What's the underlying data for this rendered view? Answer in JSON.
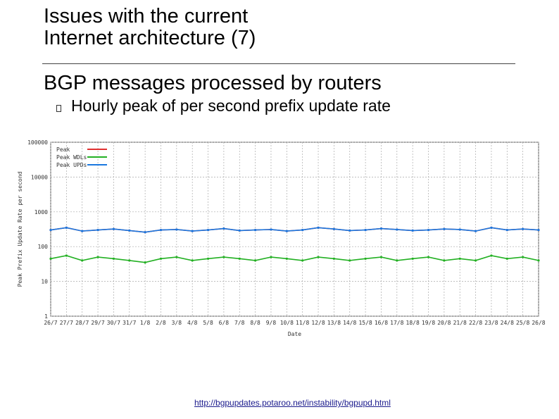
{
  "slide": {
    "title_line1": "Issues with the current",
    "title_line2": "Internet architecture (7)",
    "heading": "BGP messages processed by routers",
    "bullet": "Hourly peak of per second prefix update rate",
    "source_url": "http://bgpupdates.potaroo.net/instability/bgpupd.html"
  },
  "chart_data": {
    "type": "line",
    "ylabel": "Peak Prefix Update Rate per second",
    "xlabel": "Date",
    "yscale": "log",
    "ylim": [
      1,
      100000
    ],
    "y_ticks": [
      {
        "value": 1,
        "label": "1"
      },
      {
        "value": 10,
        "label": "10"
      },
      {
        "value": 100,
        "label": "100"
      },
      {
        "value": 1000,
        "label": "1000"
      },
      {
        "value": 10000,
        "label": "10000"
      },
      {
        "value": 100000,
        "label": "100000"
      }
    ],
    "categories": [
      "26/7",
      "27/7",
      "28/7",
      "29/7",
      "30/7",
      "31/7",
      "1/8",
      "2/8",
      "3/8",
      "4/8",
      "5/8",
      "6/8",
      "7/8",
      "8/8",
      "9/8",
      "10/8",
      "11/8",
      "12/8",
      "13/8",
      "14/8",
      "15/8",
      "16/8",
      "17/8",
      "18/8",
      "19/8",
      "20/8",
      "21/8",
      "22/8",
      "23/8",
      "24/8",
      "25/8",
      "26/8"
    ],
    "grid": true,
    "legend_position": "top-left",
    "series": [
      {
        "name": "Peak",
        "color": "#e03030",
        "values": [
          300,
          350,
          280,
          300,
          320,
          290,
          260,
          300,
          310,
          280,
          300,
          330,
          290,
          300,
          310,
          280,
          300,
          350,
          320,
          290,
          300,
          330,
          310,
          290,
          300,
          320,
          310,
          280,
          350,
          300,
          320,
          300
        ]
      },
      {
        "name": "Peak WDLs",
        "color": "#22b022",
        "values": [
          45,
          55,
          40,
          50,
          45,
          40,
          35,
          45,
          50,
          40,
          45,
          50,
          45,
          40,
          50,
          45,
          40,
          50,
          45,
          40,
          45,
          50,
          40,
          45,
          50,
          40,
          45,
          40,
          55,
          45,
          50,
          40
        ]
      },
      {
        "name": "Peak UPDs",
        "color": "#1a78e0",
        "values": [
          300,
          350,
          280,
          300,
          320,
          290,
          260,
          300,
          310,
          280,
          300,
          330,
          290,
          300,
          310,
          280,
          300,
          350,
          320,
          290,
          300,
          330,
          310,
          290,
          300,
          320,
          310,
          280,
          350,
          300,
          320,
          300
        ]
      }
    ]
  }
}
